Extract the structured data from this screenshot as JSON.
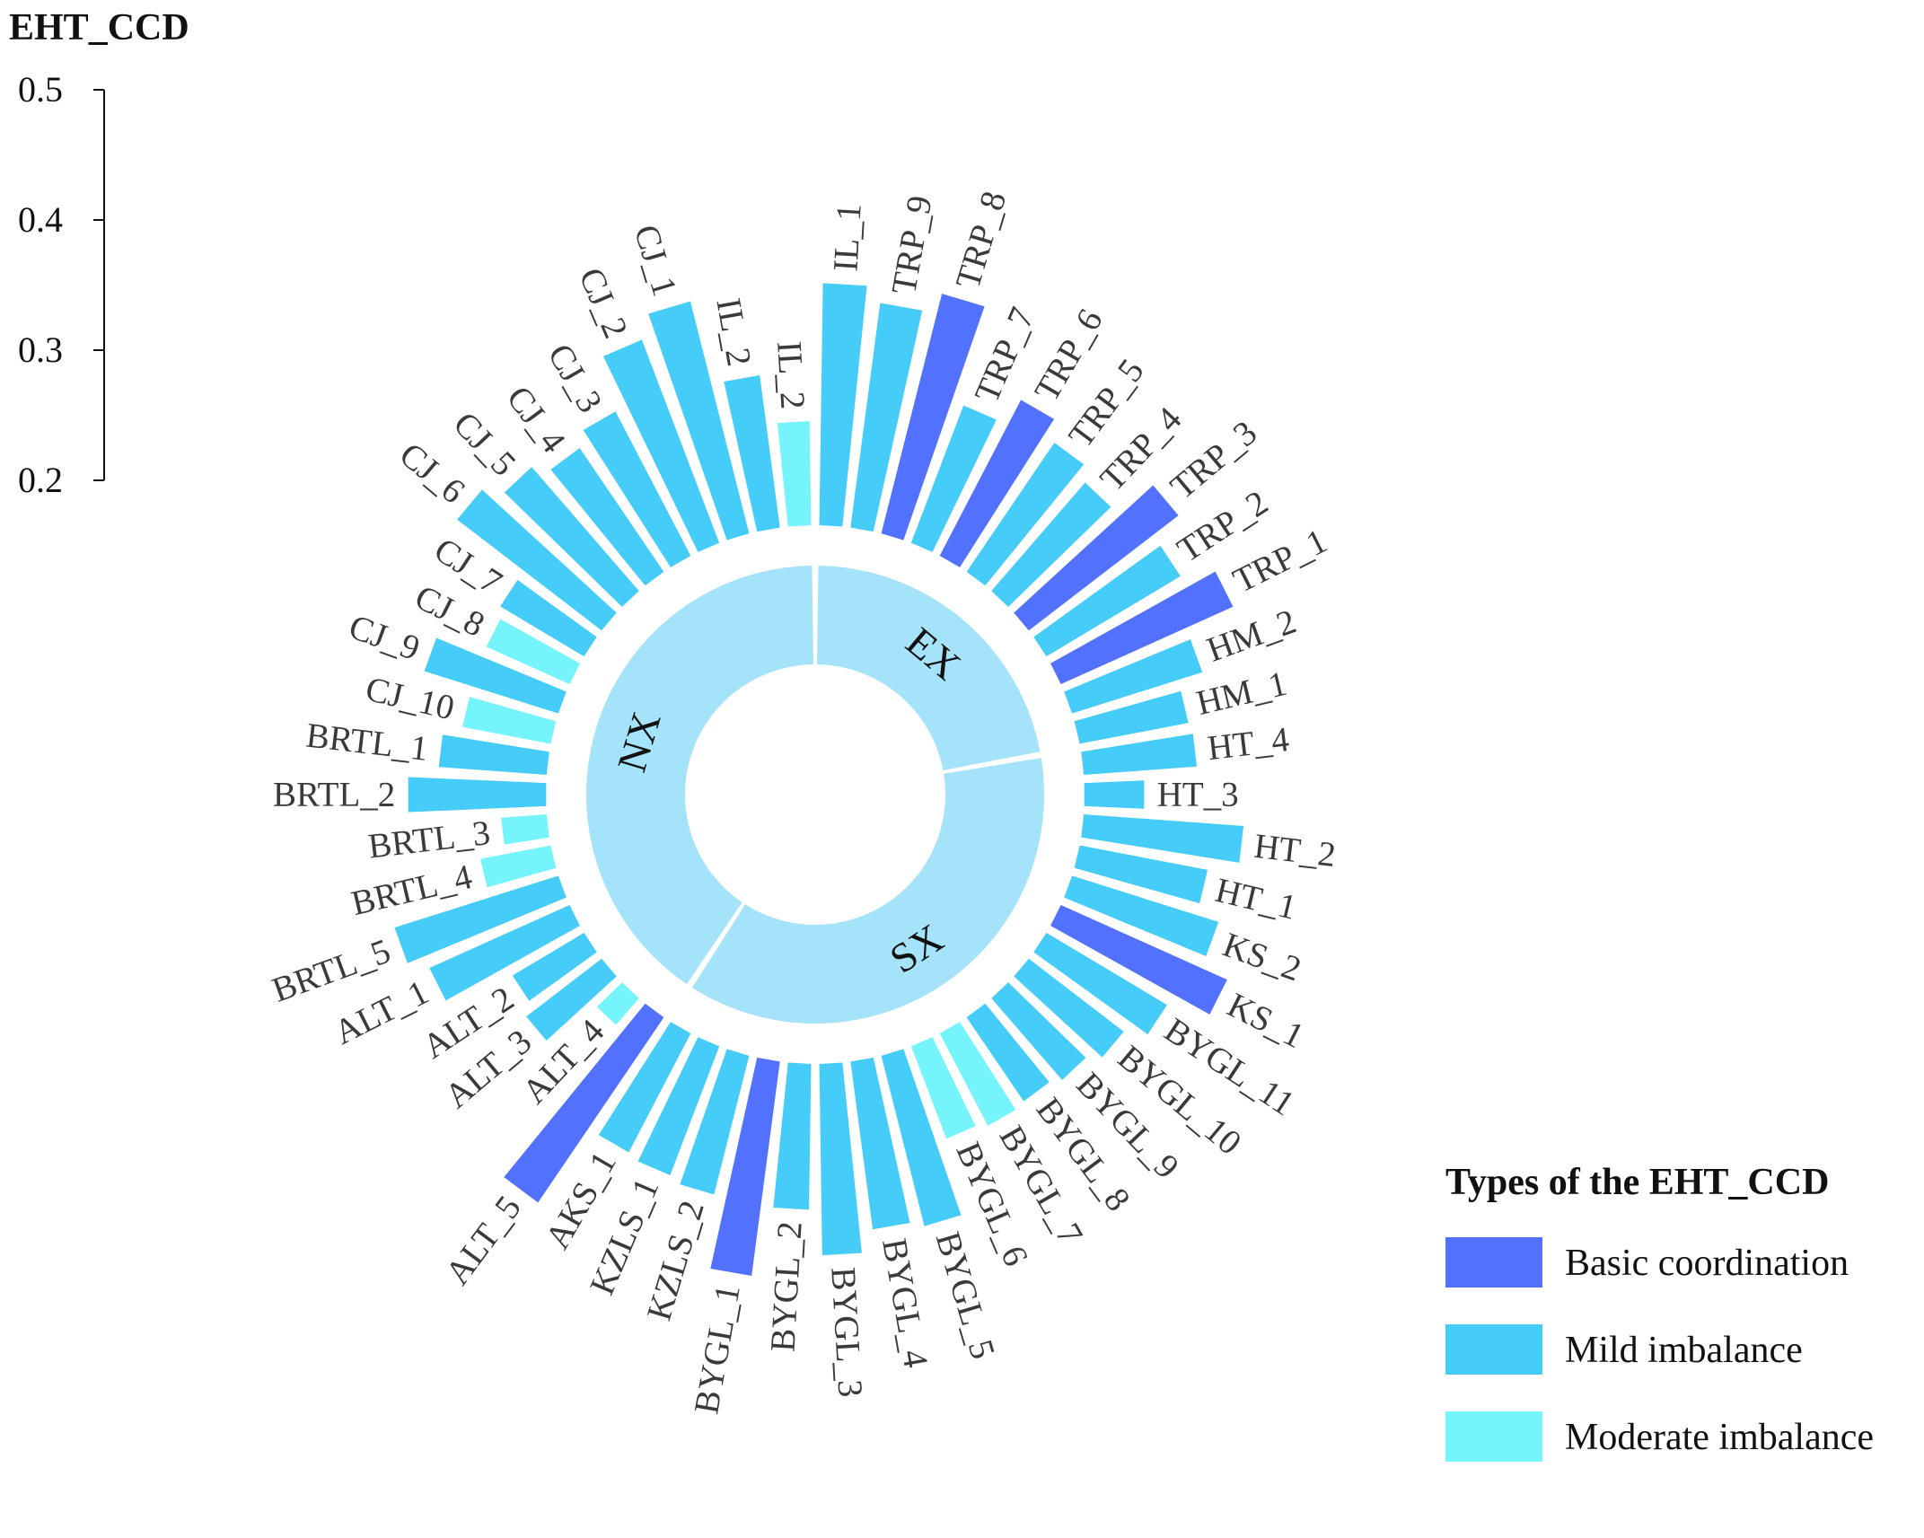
{
  "chart_data": {
    "type": "circular-bar",
    "y_axis": {
      "title": "EHT_CCD",
      "ylim": [
        0.2,
        0.5
      ],
      "ticks": [
        "0.2",
        "0.3",
        "0.4",
        "0.5"
      ]
    },
    "types": [
      {
        "name": "Basic coordination",
        "color": "#5271ff"
      },
      {
        "name": "Mild imbalance",
        "color": "#45ccf8"
      },
      {
        "name": "Moderate imbalance",
        "color": "#75f4fb"
      }
    ],
    "regions": [
      {
        "name": "EX",
        "color": "#a5e3fb"
      },
      {
        "name": "SX",
        "color": "#a5e3fb"
      },
      {
        "name": "NX",
        "color": "#a5e3fb"
      }
    ],
    "categories": [
      {
        "label": "IL_1",
        "value": 0.386,
        "type": "Mild imbalance",
        "region": "EX"
      },
      {
        "label": "TRP_9",
        "value": 0.374,
        "type": "Mild imbalance",
        "region": "EX"
      },
      {
        "label": "TRP_8",
        "value": 0.39,
        "type": "Basic coordination",
        "region": "EX"
      },
      {
        "label": "TRP_7",
        "value": 0.313,
        "type": "Mild imbalance",
        "region": "EX"
      },
      {
        "label": "TRP_6",
        "value": 0.335,
        "type": "Basic coordination",
        "region": "EX"
      },
      {
        "label": "TRP_5",
        "value": 0.32,
        "type": "Mild imbalance",
        "region": "EX"
      },
      {
        "label": "TRP_4",
        "value": 0.31,
        "type": "Mild imbalance",
        "region": "EX"
      },
      {
        "label": "TRP_3",
        "value": 0.345,
        "type": "Basic coordination",
        "region": "EX"
      },
      {
        "label": "TRP_2",
        "value": 0.32,
        "type": "Mild imbalance",
        "region": "EX"
      },
      {
        "label": "TRP_1",
        "value": 0.345,
        "type": "Basic coordination",
        "region": "EX"
      },
      {
        "label": "HM_2",
        "value": 0.305,
        "type": "Mild imbalance",
        "region": "EX"
      },
      {
        "label": "HM_1",
        "value": 0.285,
        "type": "Mild imbalance",
        "region": "EX"
      },
      {
        "label": "HT_4",
        "value": 0.287,
        "type": "Mild imbalance",
        "region": "SX"
      },
      {
        "label": "HT_3",
        "value": 0.246,
        "type": "Mild imbalance",
        "region": "SX"
      },
      {
        "label": "HT_2",
        "value": 0.323,
        "type": "Mild imbalance",
        "region": "SX"
      },
      {
        "label": "HT_1",
        "value": 0.3,
        "type": "Mild imbalance",
        "region": "SX"
      },
      {
        "label": "KS_2",
        "value": 0.318,
        "type": "Mild imbalance",
        "region": "SX"
      },
      {
        "label": "KS_1",
        "value": 0.34,
        "type": "Basic coordination",
        "region": "SX"
      },
      {
        "label": "BYGL_11",
        "value": 0.308,
        "type": "Mild imbalance",
        "region": "SX"
      },
      {
        "label": "BYGL_10",
        "value": 0.292,
        "type": "Mild imbalance",
        "region": "SX"
      },
      {
        "label": "BYGL_9",
        "value": 0.283,
        "type": "Mild imbalance",
        "region": "SX"
      },
      {
        "label": "BYGL_8",
        "value": 0.278,
        "type": "Mild imbalance",
        "region": "SX"
      },
      {
        "label": "BYGL_7",
        "value": 0.28,
        "type": "Moderate imbalance",
        "region": "SX"
      },
      {
        "label": "BYGL_6",
        "value": 0.276,
        "type": "Moderate imbalance",
        "region": "SX"
      },
      {
        "label": "BYGL_5",
        "value": 0.335,
        "type": "Mild imbalance",
        "region": "SX"
      },
      {
        "label": "BYGL_4",
        "value": 0.33,
        "type": "Mild imbalance",
        "region": "SX"
      },
      {
        "label": "BYGL_3",
        "value": 0.347,
        "type": "Mild imbalance",
        "region": "SX"
      },
      {
        "label": "BYGL_2",
        "value": 0.312,
        "type": "Mild imbalance",
        "region": "SX"
      },
      {
        "label": "BYGL_1",
        "value": 0.366,
        "type": "Basic coordination",
        "region": "SX"
      },
      {
        "label": "KZLS_2",
        "value": 0.31,
        "type": "Mild imbalance",
        "region": "SX"
      },
      {
        "label": "KZLS_1",
        "value": 0.306,
        "type": "Mild imbalance",
        "region": "SX"
      },
      {
        "label": "AKS_1",
        "value": 0.303,
        "type": "Mild imbalance",
        "region": "SX"
      },
      {
        "label": "ALT_5",
        "value": 0.372,
        "type": "Basic coordination",
        "region": "NX"
      },
      {
        "label": "ALT_4",
        "value": 0.227,
        "type": "Moderate imbalance",
        "region": "NX"
      },
      {
        "label": "ALT_3",
        "value": 0.273,
        "type": "Mild imbalance",
        "region": "NX"
      },
      {
        "label": "ALT_2",
        "value": 0.264,
        "type": "Mild imbalance",
        "region": "NX"
      },
      {
        "label": "ALT_1",
        "value": 0.318,
        "type": "Mild imbalance",
        "region": "NX"
      },
      {
        "label": "BRTL_5",
        "value": 0.332,
        "type": "Mild imbalance",
        "region": "NX"
      },
      {
        "label": "BRTL_4",
        "value": 0.255,
        "type": "Moderate imbalance",
        "region": "NX"
      },
      {
        "label": "BRTL_3",
        "value": 0.235,
        "type": "Moderate imbalance",
        "region": "NX"
      },
      {
        "label": "BRTL_2",
        "value": 0.306,
        "type": "Mild imbalance",
        "region": "NX"
      },
      {
        "label": "BRTL_1",
        "value": 0.283,
        "type": "Mild imbalance",
        "region": "NX"
      },
      {
        "label": "CJ_10",
        "value": 0.269,
        "type": "Moderate imbalance",
        "region": "NX"
      },
      {
        "label": "CJ_9",
        "value": 0.308,
        "type": "Mild imbalance",
        "region": "NX"
      },
      {
        "label": "CJ_8",
        "value": 0.27,
        "type": "Moderate imbalance",
        "region": "NX"
      },
      {
        "label": "CJ_7",
        "value": 0.275,
        "type": "Mild imbalance",
        "region": "NX"
      },
      {
        "label": "CJ_6",
        "value": 0.34,
        "type": "Mild imbalance",
        "region": "NX"
      },
      {
        "label": "CJ_5",
        "value": 0.326,
        "type": "Mild imbalance",
        "region": "NX"
      },
      {
        "label": "CJ_4",
        "value": 0.315,
        "type": "Mild imbalance",
        "region": "NX"
      },
      {
        "label": "CJ_3",
        "value": 0.325,
        "type": "Mild imbalance",
        "region": "NX"
      },
      {
        "label": "CJ_2",
        "value": 0.367,
        "type": "Mild imbalance",
        "region": "NX"
      },
      {
        "label": "CJ_1",
        "value": 0.384,
        "type": "Mild imbalance",
        "region": "NX"
      },
      {
        "label": "IL_2",
        "value": 0.318,
        "type": "Mild imbalance",
        "region": "NX"
      },
      {
        "label": "IL_2",
        "value": 0.28,
        "type": "Moderate imbalance",
        "region": "NX"
      }
    ]
  },
  "legend": {
    "title": "Types of the EHT_CCD"
  }
}
